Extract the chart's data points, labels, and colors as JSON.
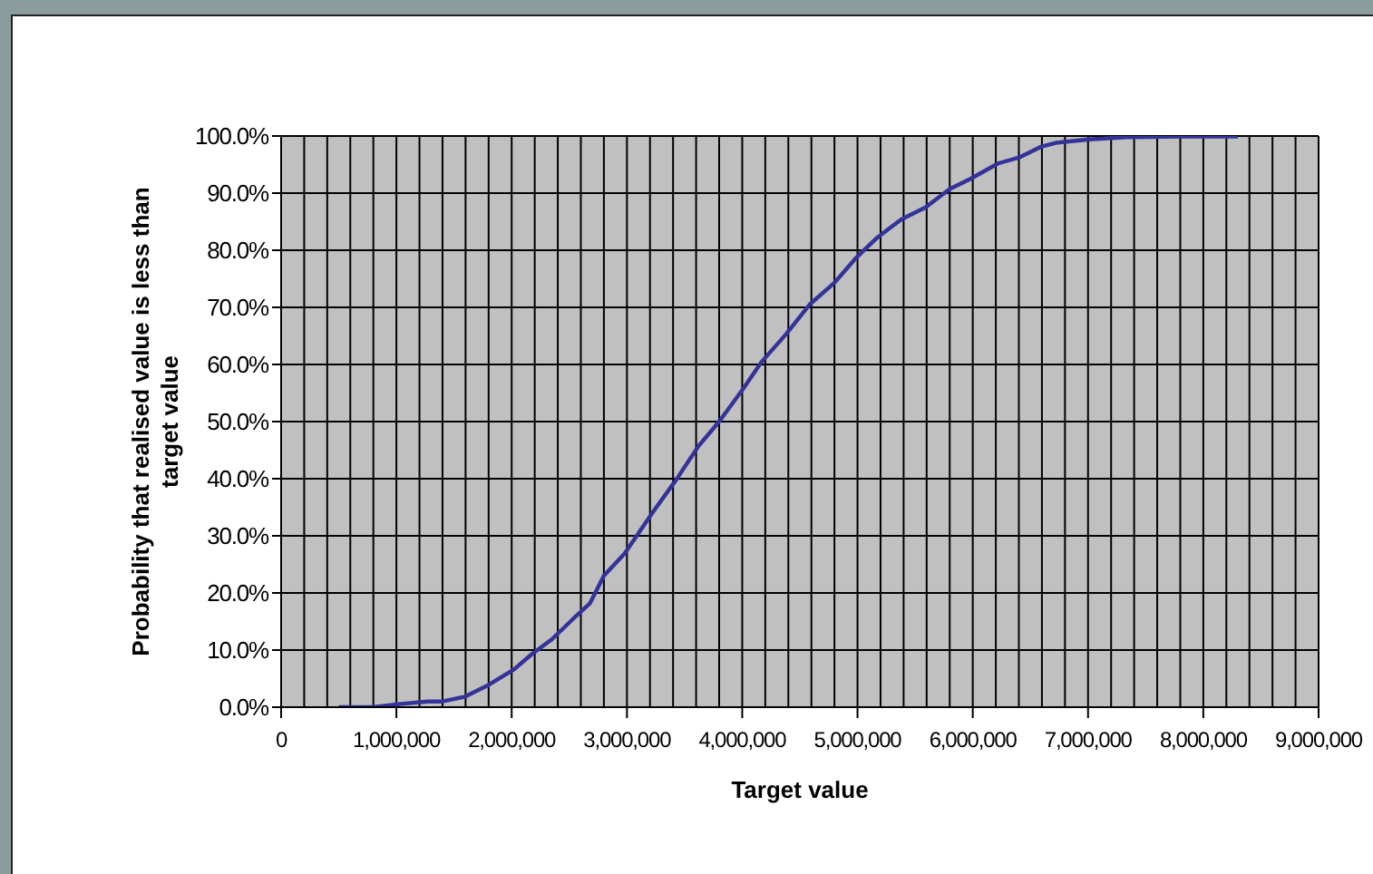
{
  "chart_data": {
    "type": "line",
    "xlabel": "Target value",
    "ylabel": "Probability that realised value is less than target value",
    "x": [
      500000,
      800000,
      1000000,
      1270000,
      1400000,
      1590000,
      1800000,
      2020000,
      2170000,
      2350000,
      2540000,
      2680000,
      2800000,
      2980000,
      3220000,
      3430000,
      3620000,
      3800000,
      4010000,
      4170000,
      4380000,
      4590000,
      4800000,
      4980000,
      5170000,
      5380000,
      5590000,
      5800000,
      5980000,
      6220000,
      6410000,
      6590000,
      6720000,
      7010000,
      7330000,
      7800000,
      8300000
    ],
    "series": [
      {
        "color": "#333399",
        "values": [
          0,
          0,
          0.5,
          1,
          1,
          1.8,
          3.9,
          6.6,
          9.2,
          11.9,
          15.6,
          18.2,
          23,
          26.9,
          34,
          39.9,
          45.7,
          50,
          55.8,
          60.5,
          65.3,
          70.6,
          74.3,
          78.5,
          82.2,
          85.4,
          87.5,
          90.7,
          92.5,
          95.2,
          96.3,
          98.1,
          98.8,
          99.4,
          99.8,
          99.9,
          99.9
        ]
      }
    ],
    "xlim": [
      0,
      9000000
    ],
    "xticks": [
      {
        "value": 0,
        "label": "0"
      },
      {
        "value": 200000,
        "label": null
      },
      {
        "value": 400000,
        "label": null
      },
      {
        "value": 600000,
        "label": null
      },
      {
        "value": 800000,
        "label": null
      },
      {
        "value": 1000000,
        "label": "1,000,000"
      },
      {
        "value": 1200000,
        "label": null
      },
      {
        "value": 1400000,
        "label": null
      },
      {
        "value": 1600000,
        "label": null
      },
      {
        "value": 1800000,
        "label": null
      },
      {
        "value": 2000000,
        "label": "2,000,000"
      },
      {
        "value": 2200000,
        "label": null
      },
      {
        "value": 2400000,
        "label": null
      },
      {
        "value": 2600000,
        "label": null
      },
      {
        "value": 2800000,
        "label": null
      },
      {
        "value": 3000000,
        "label": "3,000,000"
      },
      {
        "value": 3200000,
        "label": null
      },
      {
        "value": 3400000,
        "label": null
      },
      {
        "value": 3600000,
        "label": null
      },
      {
        "value": 3800000,
        "label": null
      },
      {
        "value": 4000000,
        "label": "4,000,000"
      },
      {
        "value": 4200000,
        "label": null
      },
      {
        "value": 4400000,
        "label": null
      },
      {
        "value": 4600000,
        "label": null
      },
      {
        "value": 4800000,
        "label": null
      },
      {
        "value": 5000000,
        "label": "5,000,000"
      },
      {
        "value": 5200000,
        "label": null
      },
      {
        "value": 5400000,
        "label": null
      },
      {
        "value": 5600000,
        "label": null
      },
      {
        "value": 5800000,
        "label": null
      },
      {
        "value": 6000000,
        "label": "6,000,000"
      },
      {
        "value": 6200000,
        "label": null
      },
      {
        "value": 6400000,
        "label": null
      },
      {
        "value": 6600000,
        "label": null
      },
      {
        "value": 6800000,
        "label": null
      },
      {
        "value": 7000000,
        "label": "7,000,000"
      },
      {
        "value": 7200000,
        "label": null
      },
      {
        "value": 7400000,
        "label": null
      },
      {
        "value": 7600000,
        "label": null
      },
      {
        "value": 7800000,
        "label": null
      },
      {
        "value": 8000000,
        "label": "8,000,000"
      },
      {
        "value": 8200000,
        "label": null
      },
      {
        "value": 8400000,
        "label": null
      },
      {
        "value": 8600000,
        "label": null
      },
      {
        "value": 8800000,
        "label": null
      },
      {
        "value": 9000000,
        "label": "9,000,000"
      }
    ],
    "ylim": [
      0,
      100
    ],
    "yticks": [
      {
        "value": 0,
        "label": "0.0%"
      },
      {
        "value": 10,
        "label": "10.0%"
      },
      {
        "value": 20,
        "label": "20.0%"
      },
      {
        "value": 30,
        "label": "30.0%"
      },
      {
        "value": 40,
        "label": "40.0%"
      },
      {
        "value": 50,
        "label": "50.0%"
      },
      {
        "value": 60,
        "label": "60.0%"
      },
      {
        "value": 70,
        "label": "70.0%"
      },
      {
        "value": 80,
        "label": "80.0%"
      },
      {
        "value": 90,
        "label": "90.0%"
      },
      {
        "value": 100,
        "label": "100.0%"
      }
    ],
    "grid": true,
    "legend": false,
    "marker": "none",
    "line_style": "solid"
  }
}
